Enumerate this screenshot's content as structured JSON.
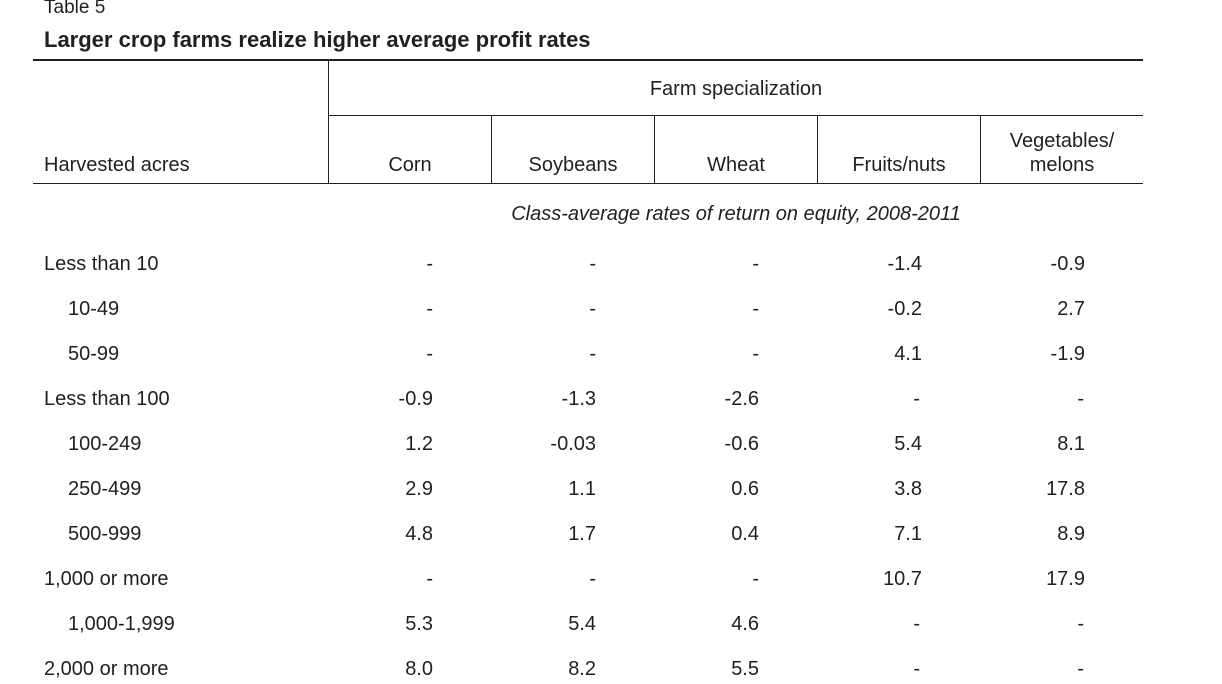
{
  "table": {
    "label": "Table 5",
    "title": "Larger crop farms realize higher average profit rates",
    "stub_header": "Harvested acres",
    "spanner": "Farm specialization",
    "columns": [
      "Corn",
      "Soybeans",
      "Wheat",
      "Fruits/nuts",
      "Vegetables/\nmelons"
    ],
    "subtitle": "Class-average rates of return on equity, 2008-2011",
    "rows": [
      {
        "label": "Less than 10",
        "indent": false,
        "values": [
          "-",
          "-",
          "-",
          "-1.4",
          "-0.9"
        ]
      },
      {
        "label": "10-49",
        "indent": true,
        "values": [
          "-",
          "-",
          "-",
          "-0.2",
          "2.7"
        ]
      },
      {
        "label": "50-99",
        "indent": true,
        "values": [
          "-",
          "-",
          "-",
          "4.1",
          "-1.9"
        ]
      },
      {
        "label": "Less than 100",
        "indent": false,
        "values": [
          "-0.9",
          "-1.3",
          "-2.6",
          "-",
          "-"
        ]
      },
      {
        "label": "100-249",
        "indent": true,
        "values": [
          "1.2",
          "-0.03",
          "-0.6",
          "5.4",
          "8.1"
        ]
      },
      {
        "label": "250-499",
        "indent": true,
        "values": [
          "2.9",
          "1.1",
          "0.6",
          "3.8",
          "17.8"
        ]
      },
      {
        "label": "500-999",
        "indent": true,
        "values": [
          "4.8",
          "1.7",
          "0.4",
          "7.1",
          "8.9"
        ]
      },
      {
        "label": "1,000 or more",
        "indent": false,
        "values": [
          "-",
          "-",
          "-",
          "10.7",
          "17.9"
        ]
      },
      {
        "label": "1,000-1,999",
        "indent": true,
        "values": [
          "5.3",
          "5.4",
          "4.6",
          "-",
          "-"
        ]
      },
      {
        "label": "2,000 or more",
        "indent": false,
        "values": [
          "8.0",
          "8.2",
          "5.5",
          "-",
          "-"
        ]
      }
    ]
  }
}
